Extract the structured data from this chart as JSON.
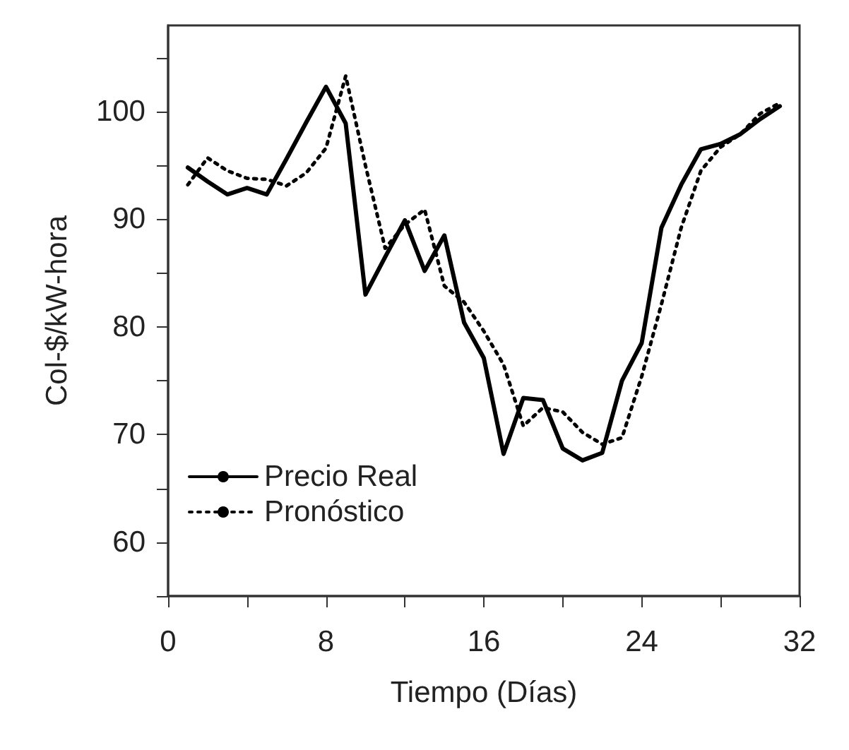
{
  "chart_data": {
    "type": "line",
    "xlabel": "Tiempo (Días)",
    "ylabel": "Col-$/kW-hora",
    "x": [
      1,
      2,
      3,
      4,
      5,
      6,
      7,
      8,
      9,
      10,
      11,
      12,
      13,
      14,
      15,
      16,
      17,
      18,
      19,
      20,
      21,
      22,
      23,
      24,
      25,
      26,
      27,
      28,
      29,
      30,
      31
    ],
    "series": [
      {
        "name": "Precio Real",
        "color": "#000000",
        "line_style": "solid",
        "values": [
          94.8,
          93.5,
          92.3,
          92.9,
          92.3,
          95.6,
          99,
          102.3,
          98.9,
          83,
          86.5,
          89.9,
          85.2,
          88.5,
          80.4,
          77.1,
          68.2,
          73.4,
          73.2,
          68.7,
          67.6,
          68.3,
          75,
          78.5,
          89.2,
          93.2,
          96.5,
          97,
          97.9,
          99.3,
          100.5
        ]
      },
      {
        "name": "Pronóstico",
        "color": "#000000",
        "line_style": "dotted",
        "values": [
          93.2,
          95.7,
          94.5,
          93.8,
          93.7,
          93.1,
          94.3,
          96.6,
          103.3,
          95,
          87.3,
          89.5,
          90.9,
          83.8,
          82.3,
          79.6,
          76.5,
          70.8,
          72.5,
          72.1,
          70.2,
          69.1,
          69.7,
          75.4,
          82.1,
          89.2,
          94.5,
          96.7,
          97.9,
          99.8,
          100.8
        ]
      }
    ],
    "xlim": [
      0,
      32
    ],
    "xticks": [
      0,
      {
        "value": 4,
        "label": null
      },
      8,
      {
        "value": 12,
        "label": null
      },
      16,
      {
        "value": 20,
        "label": null
      },
      24,
      {
        "value": 28,
        "label": null
      },
      32
    ],
    "ylim": [
      55,
      108
    ],
    "yticks": [
      {
        "value": 55,
        "label": null
      },
      60,
      {
        "value": 65,
        "label": null
      },
      70,
      {
        "value": 75,
        "label": null
      },
      80,
      {
        "value": 85,
        "label": null
      },
      90,
      {
        "value": 95,
        "label": null
      },
      100,
      {
        "value": 105,
        "label": null
      }
    ],
    "grid": false,
    "legend": "bottom left",
    "marker": "none"
  }
}
